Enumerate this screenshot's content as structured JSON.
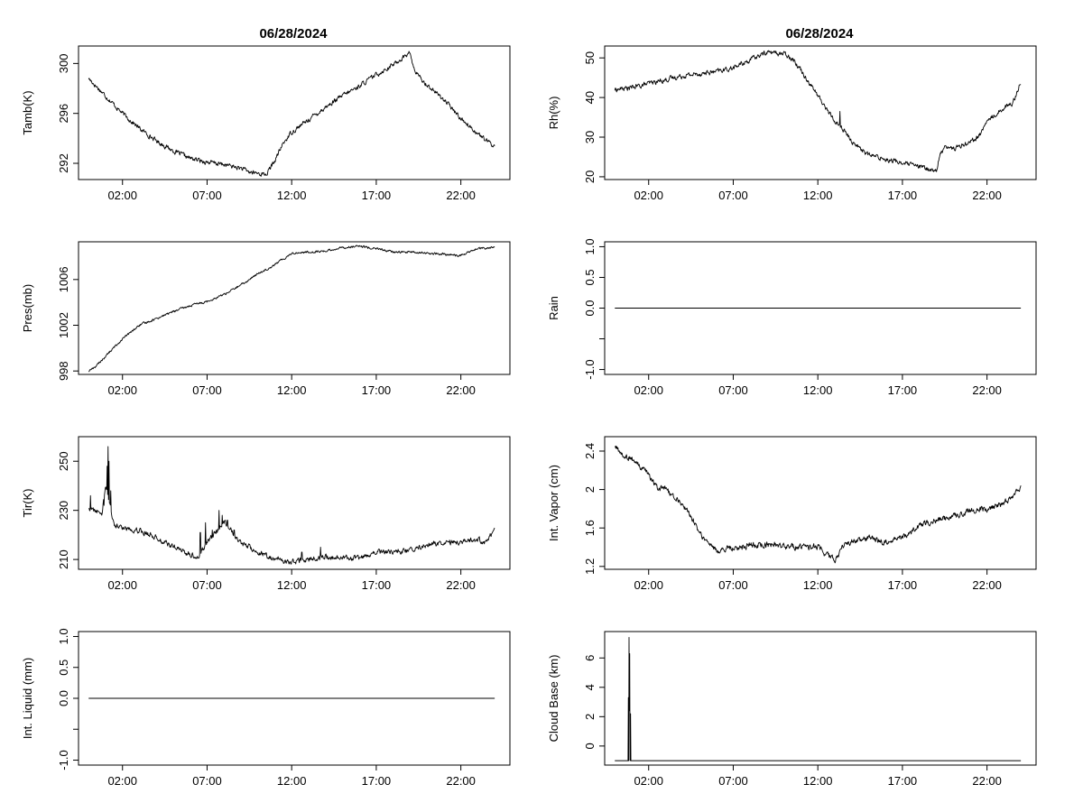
{
  "page": {
    "left_title": "06/28/2024",
    "right_title": "06/28/2024"
  },
  "chart_data": [
    {
      "id": "tamb",
      "type": "line",
      "title": "06/28/2024",
      "xlabel": "",
      "ylabel": "Tamb(K)",
      "x_tick_labels": [
        "02:00",
        "07:00",
        "12:00",
        "17:00",
        "22:00"
      ],
      "x_ticks": [
        2,
        7,
        12,
        17,
        22
      ],
      "xlim": [
        -0.6,
        24.9
      ],
      "y_ticks": [
        292,
        296,
        300
      ],
      "ylim": [
        290.7,
        301.4
      ],
      "grid": false,
      "noise": 0.15,
      "spikes": [],
      "series": [
        {
          "x": [
            0,
            1,
            2,
            3,
            4,
            5,
            6,
            7,
            8,
            9,
            9.5,
            10,
            10.5,
            11,
            11.5,
            12,
            13,
            14,
            15,
            16,
            17,
            18,
            18.5,
            19,
            19.2,
            19.6,
            20,
            21,
            22,
            23,
            23.5,
            24
          ],
          "y": [
            298.8,
            297.4,
            296.0,
            294.8,
            293.8,
            293.0,
            292.4,
            292.1,
            291.9,
            291.6,
            291.3,
            291.2,
            291.1,
            292.2,
            293.6,
            294.5,
            295.5,
            296.5,
            297.4,
            298.2,
            299.1,
            299.9,
            300.4,
            300.9,
            299.6,
            298.8,
            298.3,
            297.1,
            295.6,
            294.4,
            293.8,
            293.4
          ]
        }
      ]
    },
    {
      "id": "rh",
      "type": "line",
      "title": "06/28/2024",
      "xlabel": "",
      "ylabel": "Rh(%)",
      "x_tick_labels": [
        "02:00",
        "07:00",
        "12:00",
        "17:00",
        "22:00"
      ],
      "x_ticks": [
        2,
        7,
        12,
        17,
        22
      ],
      "xlim": [
        -0.6,
        24.9
      ],
      "y_ticks": [
        20,
        30,
        40,
        50
      ],
      "ylim": [
        19.3,
        53.0
      ],
      "grid": false,
      "noise": 0.5,
      "spikes": [
        [
          13.3,
          36.5
        ]
      ],
      "series": [
        {
          "x": [
            0,
            1,
            2,
            3,
            4,
            5,
            6,
            7,
            8,
            9,
            10,
            10.5,
            11,
            12,
            13,
            13.3,
            14,
            15,
            16,
            17,
            18,
            19,
            19.2,
            19.5,
            20,
            21,
            21.5,
            22,
            23,
            23.5,
            24
          ],
          "y": [
            42,
            42.5,
            43.5,
            44.5,
            45.5,
            46,
            46.5,
            47.5,
            49.5,
            51.5,
            51,
            50,
            47,
            40.5,
            34,
            33,
            29,
            25.5,
            24.5,
            23.5,
            22.5,
            21.5,
            25,
            28,
            27,
            29,
            30,
            34,
            37.5,
            38.5,
            44
          ]
        }
      ]
    },
    {
      "id": "pres",
      "type": "line",
      "title": "",
      "xlabel": "",
      "ylabel": "Pres(mb)",
      "x_tick_labels": [
        "02:00",
        "07:00",
        "12:00",
        "17:00",
        "22:00"
      ],
      "x_ticks": [
        2,
        7,
        12,
        17,
        22
      ],
      "xlim": [
        -0.6,
        24.9
      ],
      "y_ticks": [
        998,
        1002,
        1006
      ],
      "ylim": [
        997.7,
        1009.3
      ],
      "grid": false,
      "noise": 0.08,
      "spikes": [],
      "series": [
        {
          "x": [
            0,
            0.5,
            1,
            2,
            3,
            4,
            5,
            6,
            7,
            8,
            9,
            10,
            11,
            12,
            13,
            14,
            15,
            16,
            17,
            18,
            19,
            20,
            21,
            22,
            23,
            24
          ],
          "y": [
            998.0,
            998.5,
            999.3,
            1000.8,
            1002.0,
            1002.6,
            1003.2,
            1003.7,
            1004.1,
            1004.7,
            1005.5,
            1006.5,
            1007.3,
            1008.3,
            1008.4,
            1008.5,
            1008.8,
            1008.9,
            1008.7,
            1008.4,
            1008.4,
            1008.3,
            1008.2,
            1008.1,
            1008.7,
            1008.8
          ]
        }
      ]
    },
    {
      "id": "rain",
      "type": "line",
      "title": "",
      "xlabel": "",
      "ylabel": "Rain",
      "x_tick_labels": [
        "02:00",
        "07:00",
        "12:00",
        "17:00",
        "22:00"
      ],
      "x_ticks": [
        2,
        7,
        12,
        17,
        22
      ],
      "xlim": [
        -0.6,
        24.9
      ],
      "y_ticks": [
        -1,
        -0.5,
        0,
        0.5,
        1
      ],
      "y_tick_labels": [
        "-1.0",
        "",
        "0.0",
        "0.5",
        "1.0"
      ],
      "ylim": [
        -1.08,
        1.08
      ],
      "grid": false,
      "noise": 0,
      "spikes": [],
      "series": [
        {
          "x": [
            0,
            24
          ],
          "y": [
            0,
            0
          ]
        }
      ]
    },
    {
      "id": "tir",
      "type": "line",
      "title": "",
      "xlabel": "",
      "ylabel": "Tir(K)",
      "x_tick_labels": [
        "02:00",
        "07:00",
        "12:00",
        "17:00",
        "22:00"
      ],
      "x_ticks": [
        2,
        7,
        12,
        17,
        22
      ],
      "xlim": [
        -0.6,
        24.9
      ],
      "y_ticks": [
        210,
        230,
        250
      ],
      "ylim": [
        206,
        260
      ],
      "grid": false,
      "noise": 0.9,
      "spikes": [
        [
          0.1,
          236
        ],
        [
          0.9,
          232
        ],
        [
          1.1,
          248
        ],
        [
          1.15,
          256
        ],
        [
          1.2,
          250
        ],
        [
          1.3,
          238
        ],
        [
          6.6,
          221
        ],
        [
          6.9,
          225
        ],
        [
          7.3,
          222
        ],
        [
          7.7,
          230
        ],
        [
          7.9,
          228
        ],
        [
          8.2,
          226
        ],
        [
          8.6,
          222
        ],
        [
          8.9,
          218
        ],
        [
          12.6,
          213
        ],
        [
          13.7,
          215
        ]
      ],
      "series": [
        {
          "x": [
            0,
            0.3,
            0.8,
            1.0,
            1.3,
            1.5,
            2,
            3,
            4,
            5,
            6,
            6.5,
            7,
            7.5,
            8,
            8.5,
            9,
            10,
            11,
            12,
            13,
            14,
            15,
            16,
            17,
            18,
            19,
            20,
            21,
            22,
            23,
            23.5,
            23.8,
            24
          ],
          "y": [
            231,
            230,
            229,
            241,
            231,
            224,
            223,
            222,
            219,
            215,
            212,
            211,
            217,
            221,
            226,
            221,
            217,
            213,
            210,
            209,
            210,
            211,
            211,
            210,
            213,
            213,
            214,
            216,
            217,
            217,
            218,
            217,
            220,
            224
          ]
        }
      ]
    },
    {
      "id": "vapor",
      "type": "line",
      "title": "",
      "xlabel": "",
      "ylabel": "Int. Vapor (cm)",
      "x_tick_labels": [
        "02:00",
        "07:00",
        "12:00",
        "17:00",
        "22:00"
      ],
      "x_ticks": [
        2,
        7,
        12,
        17,
        22
      ],
      "xlim": [
        -0.6,
        24.9
      ],
      "y_ticks": [
        1.2,
        1.6,
        2.0,
        2.4
      ],
      "ylim": [
        1.17,
        2.55
      ],
      "grid": false,
      "noise": 0.025,
      "spikes": [],
      "series": [
        {
          "x": [
            0,
            0.5,
            1,
            2,
            2.5,
            3,
            4,
            4.5,
            5,
            5.5,
            6,
            7,
            8,
            9,
            10,
            11,
            12,
            12.5,
            13,
            13.5,
            14,
            15,
            16,
            17,
            18,
            19,
            20,
            21,
            22,
            23,
            24
          ],
          "y": [
            2.45,
            2.35,
            2.32,
            2.15,
            2.02,
            2.0,
            1.85,
            1.72,
            1.55,
            1.45,
            1.36,
            1.39,
            1.42,
            1.43,
            1.41,
            1.4,
            1.4,
            1.32,
            1.27,
            1.4,
            1.47,
            1.5,
            1.45,
            1.5,
            1.62,
            1.68,
            1.72,
            1.78,
            1.8,
            1.85,
            2.02
          ]
        }
      ]
    },
    {
      "id": "liquid",
      "type": "line",
      "title": "",
      "xlabel": "",
      "ylabel": "Int. Liquid (mm)",
      "x_tick_labels": [
        "02:00",
        "07:00",
        "12:00",
        "17:00",
        "22:00"
      ],
      "x_ticks": [
        2,
        7,
        12,
        17,
        22
      ],
      "xlim": [
        -0.6,
        24.9
      ],
      "y_ticks": [
        -1,
        -0.5,
        0,
        0.5,
        1
      ],
      "y_tick_labels": [
        "-1.0",
        "",
        "0.0",
        "0.5",
        "1.0"
      ],
      "ylim": [
        -1.08,
        1.08
      ],
      "grid": false,
      "noise": 0,
      "spikes": [],
      "series": [
        {
          "x": [
            0,
            24
          ],
          "y": [
            0,
            0
          ]
        }
      ]
    },
    {
      "id": "cloud",
      "type": "line",
      "title": "",
      "xlabel": "",
      "ylabel": "Cloud Base (km)",
      "x_tick_labels": [
        "02:00",
        "07:00",
        "12:00",
        "17:00",
        "22:00"
      ],
      "x_ticks": [
        2,
        7,
        12,
        17,
        22
      ],
      "xlim": [
        -0.6,
        24.9
      ],
      "y_ticks": [
        0,
        2,
        4,
        6
      ],
      "ylim": [
        -1.3,
        7.8
      ],
      "grid": false,
      "noise": 0,
      "spikes": [],
      "series": [
        {
          "x": [
            0,
            0.78,
            0.8,
            0.82,
            0.84,
            0.86,
            0.88,
            0.9,
            0.93,
            0.95,
            0.97,
            1.0,
            24
          ],
          "y": [
            -1,
            -1,
            3.3,
            -1,
            7.4,
            2.4,
            6.3,
            -1,
            2.2,
            -1,
            -1,
            -1,
            -1
          ]
        }
      ]
    }
  ]
}
